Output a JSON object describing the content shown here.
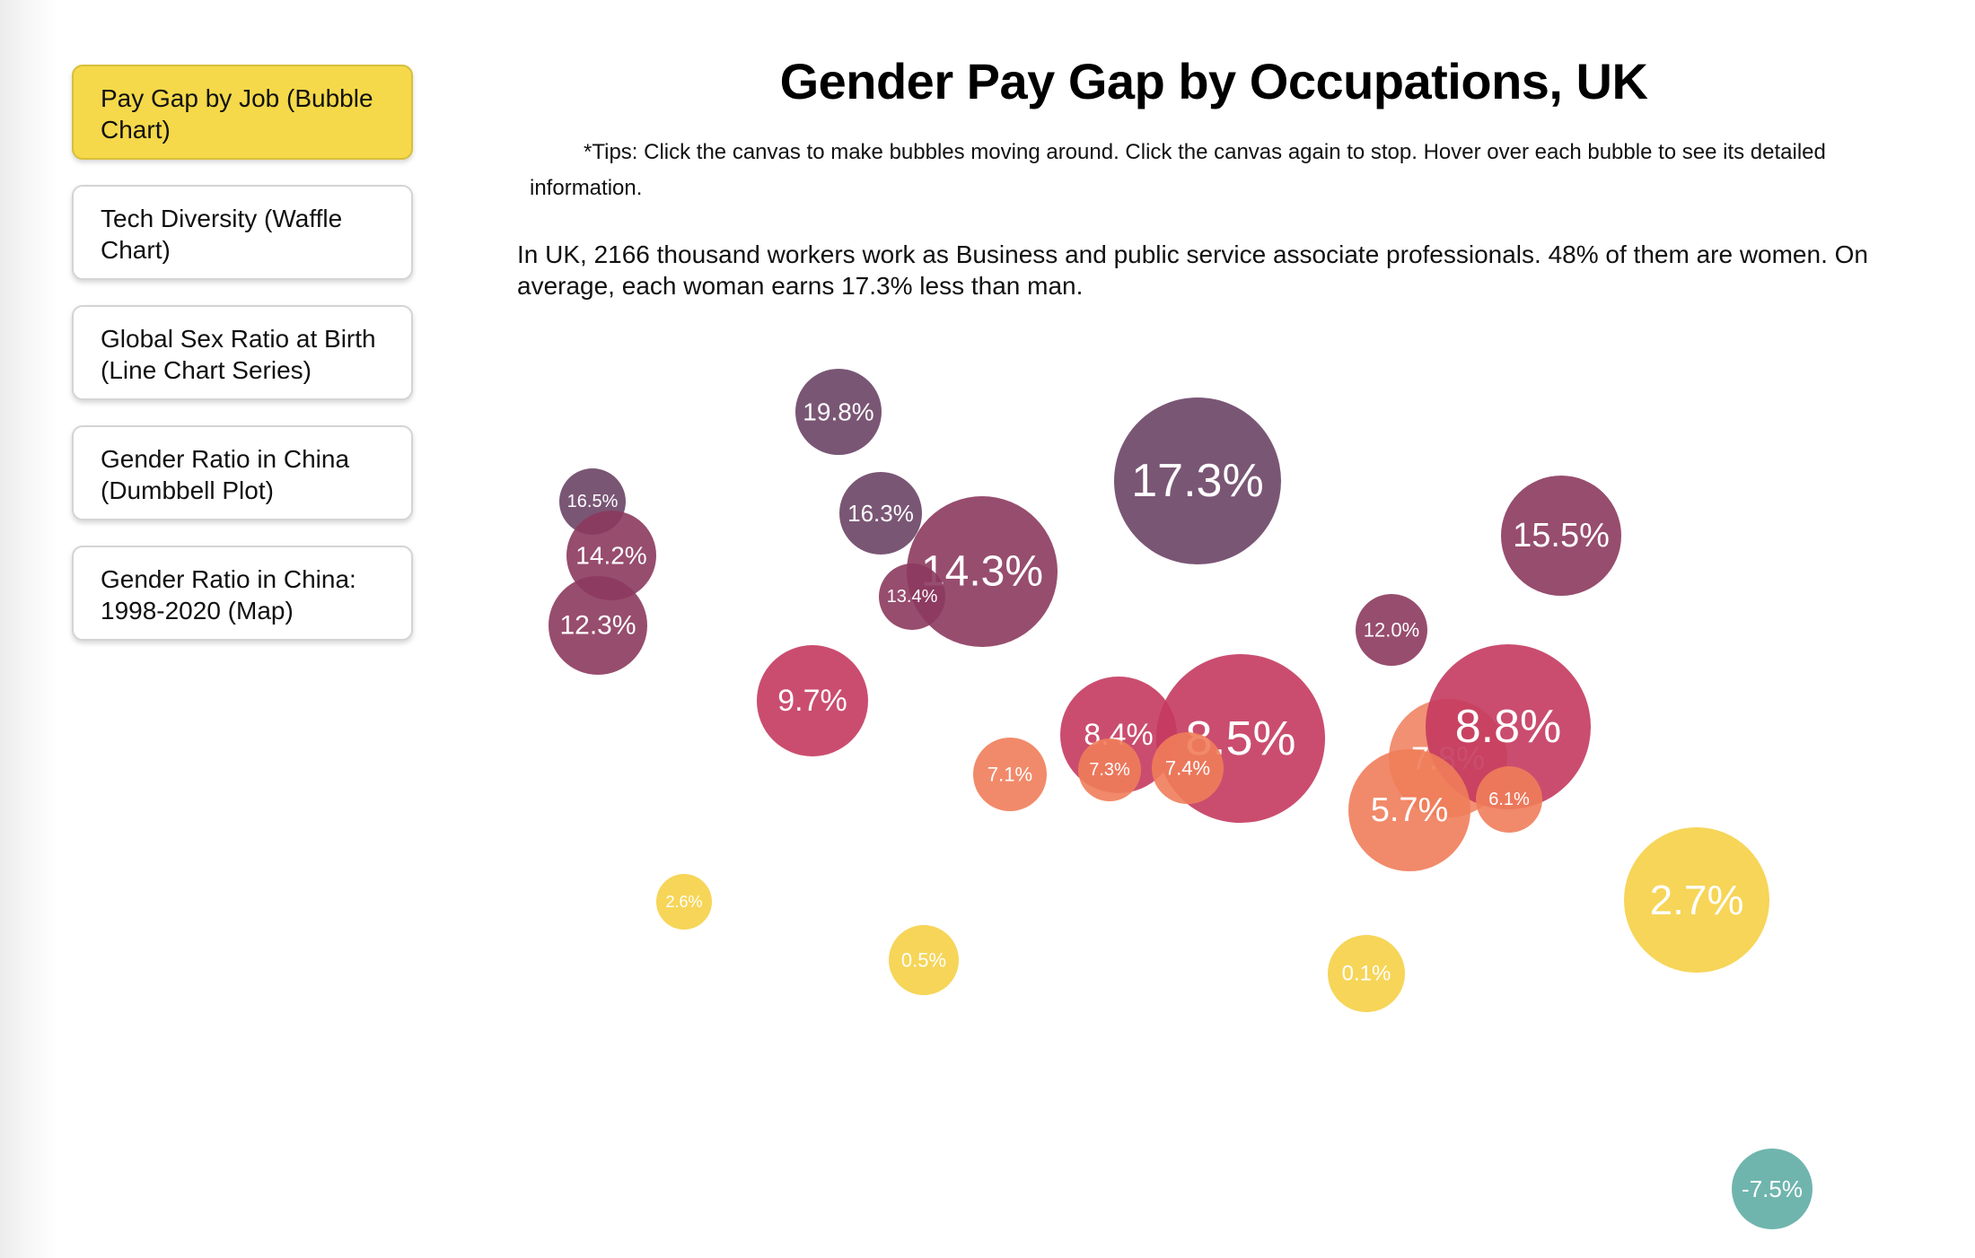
{
  "nav": {
    "items": [
      {
        "label": "Pay Gap by Job (Bubble Chart)",
        "active": true
      },
      {
        "label": "Tech Diversity (Waffle Chart)",
        "active": false
      },
      {
        "label": "Global Sex Ratio at Birth (Line Chart Series)",
        "active": false
      },
      {
        "label": "Gender Ratio in China (Dumbbell Plot)",
        "active": false
      },
      {
        "label": "Gender Ratio in China: 1998-2020 (Map)",
        "active": false
      }
    ]
  },
  "header": {
    "title": "Gender Pay Gap by Occupations, UK"
  },
  "tips": "*Tips: Click the canvas to make bubbles moving around. Click the canvas again to stop. Hover over each bubble to see its detailed information.",
  "info": "In UK, 2166 thousand workers work as Business and public service associate professionals. 48% of them are women. On average, each woman earns 17.3% less than man.",
  "colors": {
    "accent_nav_active": "#f5d94a",
    "bubble_high": "#6b4466",
    "bubble_mid": "#c43a5f",
    "bubble_low": "#ef7d5a",
    "bubble_near_zero": "#f5d34f",
    "bubble_negative": "#5fada5"
  },
  "chart_data": {
    "type": "bubble",
    "series": [
      {
        "label": "19.8%",
        "value": 19.8
      },
      {
        "label": "16.5%",
        "value": 16.5
      },
      {
        "label": "14.2%",
        "value": 14.2
      },
      {
        "label": "12.3%",
        "value": 12.3
      },
      {
        "label": "16.3%",
        "value": 16.3
      },
      {
        "label": "14.3%",
        "value": 14.3
      },
      {
        "label": "13.4%",
        "value": 13.4
      },
      {
        "label": "17.3%",
        "value": 17.3
      },
      {
        "label": "15.5%",
        "value": 15.5
      },
      {
        "label": "12.0%",
        "value": 12.0
      },
      {
        "label": "9.7%",
        "value": 9.7
      },
      {
        "label": "8.4%",
        "value": 8.4
      },
      {
        "label": "8.5%",
        "value": 8.5
      },
      {
        "label": "7.1%",
        "value": 7.1
      },
      {
        "label": "7.3%",
        "value": 7.3
      },
      {
        "label": "7.4%",
        "value": 7.4
      },
      {
        "label": "7.8%",
        "value": 7.8
      },
      {
        "label": "8.8%",
        "value": 8.8
      },
      {
        "label": "5.7%",
        "value": 5.7
      },
      {
        "label": "6.1%",
        "value": 6.1
      },
      {
        "label": "2.6%",
        "value": 2.6
      },
      {
        "label": "0.5%",
        "value": 0.5
      },
      {
        "label": "0.1%",
        "value": 0.1
      },
      {
        "label": "2.7%",
        "value": 2.7
      },
      {
        "label": "-7.5%",
        "value": -7.5
      }
    ]
  }
}
